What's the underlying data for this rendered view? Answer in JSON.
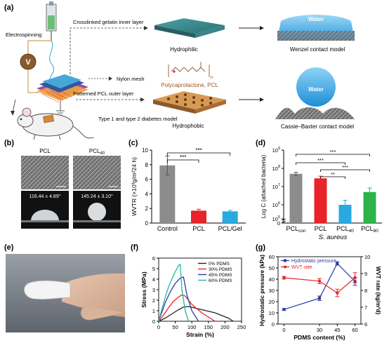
{
  "panels": {
    "a": {
      "label": "(a)",
      "texts": {
        "crosslinked": "Crosslinked gelatin inner layer",
        "electrospinning": "Electrospinning",
        "voltage": "V",
        "nylon": "Nylon mesh",
        "patterned": "Patterned PCL outer layer",
        "mouse_model": "Type 1 and type 2 diabetes model",
        "hydrophilic": "Hydrophilic",
        "hydrophobic": "Hydrophobic",
        "polymer": "Polycaprolactone, PCL",
        "polymer_n": "n",
        "water_top": "Water",
        "water_bottom": "Water",
        "wenzel": "Wenzel contact model",
        "cassie": "Cassie–Baxter contact model"
      }
    },
    "b": {
      "label": "(b)",
      "left_title": "PCL",
      "right_title_main": "PCL",
      "right_title_sub": "40",
      "left_angle": "116.44 ± 4.89°",
      "right_angle": "145.24 ± 3.10°"
    },
    "e": {
      "label": "(e)"
    }
  },
  "chart_data": [
    {
      "id": "c",
      "label": "(c)",
      "type": "bar",
      "categories": [
        "Control",
        "PCL",
        "PCL/Gel"
      ],
      "values": [
        7.9,
        1.7,
        1.6
      ],
      "errors": [
        1.3,
        0.2,
        0.15
      ],
      "colors": [
        "#8c8c8c",
        "#e8232a",
        "#29a9e0"
      ],
      "ylabel": "WVTR (×10³g/m²24 h)",
      "ylim": [
        0,
        10
      ],
      "yticks": [
        "0",
        "2",
        "4",
        "6",
        "8",
        "10"
      ],
      "significance": [
        "***",
        "***"
      ]
    },
    {
      "id": "d",
      "label": "(d)",
      "type": "bar",
      "categories": [
        {
          "main": "PCL",
          "sub": "con"
        },
        {
          "main": "PCL",
          "sub": ""
        },
        {
          "main": "PCL",
          "sub": "40"
        },
        {
          "main": "PCL",
          "sub": "80"
        }
      ],
      "values": [
        7.7,
        7.45,
        6.0,
        6.7
      ],
      "errors": [
        0.08,
        0.12,
        0.25,
        0.22
      ],
      "colors": [
        "#8c8c8c",
        "#e8232a",
        "#29a9e0",
        "#2db34a"
      ],
      "ylabel": "Log C (attached bacteria)",
      "xlabel": "S. aureus",
      "ylim": [
        5,
        9
      ],
      "yticks": [
        {
          "base": "10",
          "exp": "5"
        },
        {
          "base": "10",
          "exp": "6"
        },
        {
          "base": "10",
          "exp": "7"
        },
        {
          "base": "10",
          "exp": "8"
        },
        {
          "base": "10",
          "exp": "9"
        }
      ],
      "tick_zero": "0",
      "significance": [
        "***",
        "***",
        "***",
        "**"
      ]
    },
    {
      "id": "f",
      "label": "(f)",
      "type": "line",
      "xlabel": "Strain (%)",
      "ylabel": "Stress (MPa)",
      "xlim": [
        0,
        250
      ],
      "ylim": [
        0,
        6
      ],
      "xticks": [
        "0",
        "50",
        "100",
        "150",
        "200",
        "250"
      ],
      "yticks": [
        "0",
        "1",
        "2",
        "3",
        "4",
        "5",
        "6"
      ],
      "series": [
        {
          "name": "0% PDMS",
          "color": "#222222",
          "x": [
            0,
            20,
            40,
            60,
            75,
            90,
            130,
            170,
            210,
            225
          ],
          "y": [
            0,
            0.3,
            0.7,
            1.1,
            1.35,
            1.4,
            1.1,
            0.8,
            0.3,
            0
          ]
        },
        {
          "name": "30% PDMS",
          "color": "#e8232a",
          "x": [
            0,
            15,
            30,
            45,
            60,
            70,
            80,
            100,
            130,
            170
          ],
          "y": [
            0,
            0.6,
            1.3,
            1.9,
            2.3,
            2.5,
            2.4,
            1.6,
            0.8,
            0
          ]
        },
        {
          "name": "45% PDMS",
          "color": "#2a3d9c",
          "x": [
            0,
            10,
            20,
            35,
            50,
            65,
            75,
            85,
            100,
            120
          ],
          "y": [
            0,
            0.9,
            1.8,
            2.8,
            3.6,
            4.1,
            4.2,
            2.5,
            1.0,
            0
          ]
        },
        {
          "name": "60% PDMS",
          "color": "#2bb5a0",
          "x": [
            0,
            10,
            20,
            30,
            45,
            60,
            65,
            70,
            80,
            90
          ],
          "y": [
            0,
            1.2,
            2.3,
            3.3,
            4.4,
            5.3,
            5.4,
            3.0,
            1.0,
            0
          ]
        }
      ]
    },
    {
      "id": "g",
      "label": "(g)",
      "type": "line",
      "xlabel": "PDMS content (%)",
      "ylabel_left": "Hydrostatic pressure (kPa)",
      "ylabel_right": "WVT rate (kg/m²d)",
      "x": [
        0,
        30,
        45,
        60
      ],
      "xticks": [
        "0",
        "30",
        "45",
        "60"
      ],
      "ylim_left": [
        0,
        60
      ],
      "yticks_left": [
        "0",
        "10",
        "20",
        "30",
        "40",
        "50",
        "60"
      ],
      "ylim_right": [
        6,
        10
      ],
      "yticks_right": [
        "6",
        "7",
        "8",
        "9",
        "10"
      ],
      "series": [
        {
          "name": "Hydrostatic pressure",
          "axis": "left",
          "color": "#2a3d9c",
          "values": [
            13,
            23,
            54,
            38
          ],
          "errors": [
            0.8,
            2,
            1.5,
            3.5
          ]
        },
        {
          "name": "WVT rate",
          "axis": "right",
          "color": "#e8232a",
          "values": [
            8.75,
            8.55,
            7.85,
            8.75
          ],
          "errors": [
            0.08,
            0.15,
            0.22,
            0.3
          ]
        }
      ]
    }
  ]
}
